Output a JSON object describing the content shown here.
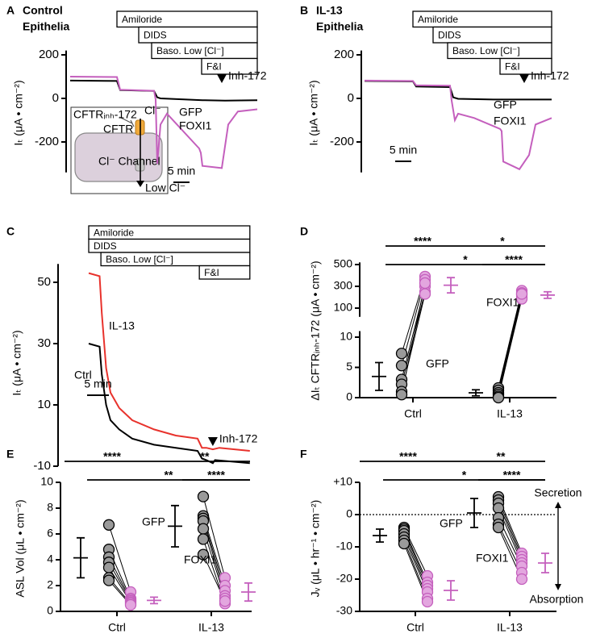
{
  "chart_data": [
    {
      "type": "line",
      "panel": "A",
      "title": [
        "Control",
        "Epithelia"
      ],
      "title_color": "#000000",
      "ylabel": "Iₜ (μA • cm⁻²)",
      "ylim": [
        -340,
        220
      ],
      "yticks": [
        200,
        0,
        -200
      ],
      "xlim": [
        0,
        58
      ],
      "treatments": [
        {
          "label": "Amiloride",
          "start": 14.5
        },
        {
          "label": "DIDS",
          "start": 21.25
        },
        {
          "label": "Baso. Low [Cl⁻]",
          "start": 25.25
        },
        {
          "label": "F&I",
          "start": 40.75
        }
      ],
      "series": [
        {
          "name": "GFP",
          "color": "#000000",
          "x": [
            0,
            14.5,
            15.5,
            26,
            27,
            28,
            36,
            41,
            48,
            58
          ],
          "values": [
            82,
            80,
            38,
            34,
            5,
            0,
            -5,
            -8,
            -10,
            -8
          ]
        },
        {
          "name": "FOXI1",
          "color": "#c45fbd",
          "x": [
            0,
            14.5,
            15.5,
            26,
            26.5,
            27,
            28,
            30,
            40,
            40.5,
            41,
            47,
            49,
            52,
            58
          ],
          "values": [
            100,
            98,
            40,
            35,
            -5,
            -300,
            -120,
            -70,
            -230,
            -250,
            -310,
            -320,
            -120,
            -60,
            -50
          ]
        }
      ],
      "marker": {
        "label": "Inh-172",
        "x": 47
      },
      "scalebar": {
        "label": "5 min",
        "value": 5
      },
      "inset": {
        "inhibitor": "CFTRᵢₙₕ-172",
        "ion": "Cl⁻",
        "channel": "CFTR",
        "other": "Cl⁻ Channel",
        "low": "Low Cl⁻"
      }
    },
    {
      "type": "line",
      "panel": "B",
      "title": [
        "IL-13",
        "Epithelia"
      ],
      "title_color": "#e8322c",
      "ylabel": "Iₜ (μA • cm⁻²)",
      "ylim": [
        -340,
        220
      ],
      "yticks": [
        200,
        0,
        -200
      ],
      "xlim": [
        0,
        58
      ],
      "treatments": [
        {
          "label": "Amiloride",
          "start": 15
        },
        {
          "label": "DIDS",
          "start": 21.25
        },
        {
          "label": "Baso. Low [Cl⁻]",
          "start": 25.75
        },
        {
          "label": "F&I",
          "start": 42
        }
      ],
      "series": [
        {
          "name": "GFP",
          "color": "#000000",
          "x": [
            0,
            15,
            16,
            26.5,
            27.5,
            29,
            40,
            58
          ],
          "values": [
            80,
            78,
            55,
            52,
            5,
            -2,
            -5,
            -5
          ]
        },
        {
          "name": "FOXI1",
          "color": "#c45fbd",
          "x": [
            0,
            15,
            16,
            26.5,
            27,
            28,
            29,
            34,
            42,
            42.5,
            43,
            48,
            51,
            53,
            58
          ],
          "values": [
            82,
            80,
            60,
            58,
            -10,
            -100,
            -70,
            -90,
            -140,
            -150,
            -290,
            -325,
            -260,
            -120,
            -90
          ]
        }
      ],
      "marker": {
        "label": "Inh-172",
        "x": 49.5
      },
      "scalebar": {
        "label": "5 min",
        "value": 5
      }
    },
    {
      "type": "line",
      "panel": "C",
      "title": [],
      "title_color": "#000000",
      "ylabel": "Iₜ (μA • cm⁻²)",
      "ylim": [
        -10,
        56
      ],
      "yticks": [
        50,
        30,
        10,
        -10
      ],
      "xlim": [
        0,
        37
      ],
      "treatments": [
        {
          "label": "Amiloride",
          "start": 0
        },
        {
          "label": "DIDS",
          "start": 0
        },
        {
          "label": "Baso. Low [Cl⁻]",
          "start": 2.8
        },
        {
          "label": "F&I",
          "start": 25.4
        }
      ],
      "series": [
        {
          "name": "Ctrl",
          "color": "#000000",
          "x": [
            0,
            2.5,
            3,
            4,
            5,
            7,
            10,
            15,
            20,
            25,
            26,
            27,
            28.5,
            29,
            37
          ],
          "values": [
            30,
            29,
            20,
            10,
            5,
            2,
            -1,
            -3,
            -4,
            -5,
            -7.5,
            -8,
            -9,
            -8,
            -9
          ]
        },
        {
          "name": "IL-13",
          "color": "#e8322c",
          "x": [
            0,
            2.5,
            3,
            4,
            5,
            7,
            10,
            15,
            20,
            25,
            26,
            27,
            28.5,
            30,
            37
          ],
          "values": [
            53,
            52,
            40,
            22,
            14,
            9,
            5,
            2,
            0,
            -1,
            -4,
            -4,
            -4.5,
            -4,
            -5
          ]
        }
      ],
      "marker": {
        "label": "Inh-172",
        "x": 28.5
      },
      "scalebar": {
        "label": "5 min",
        "value": 5
      }
    },
    {
      "type": "strip",
      "panel": "D",
      "ylabel": "ΔIₜ CFTRᵢₙₕ-172 (μA • cm⁻²)",
      "categories": [
        "Ctrl",
        "IL-13"
      ],
      "category_colors": [
        "#000000",
        "#e8322c"
      ],
      "ylim": [
        0,
        11
      ],
      "yticks": [
        0,
        5,
        10
      ],
      "ylim_break": [
        20,
        520
      ],
      "yticks_break": [
        100,
        300,
        500
      ],
      "series": [
        {
          "name": "GFP",
          "color": "#9a9a9a",
          "edge_color": "#000000",
          "values": [
            [
              7.3,
              5.3,
              3,
              2.2,
              1,
              0.5
            ],
            [
              1.6,
              1.2,
              0.8,
              0.5,
              0.2,
              0
            ]
          ],
          "mean": [
            3.5,
            0.8
          ],
          "sd": [
            2.3,
            0.5
          ]
        },
        {
          "name": "FOXI1",
          "color": "#e3a6df",
          "edge_color": "#c45fbd",
          "values": [
            [
              390,
              360,
              300,
              250,
              230,
              330
            ],
            [
              260,
              240,
              220,
              200,
              185,
              230
            ]
          ],
          "mean": [
            310,
            220
          ],
          "sd": [
            70,
            30
          ]
        }
      ],
      "significance": [
        "****",
        "*",
        "*",
        "****"
      ]
    },
    {
      "type": "strip",
      "panel": "E",
      "ylabel": "ASL Vol (μL • cm⁻²)",
      "categories": [
        "Ctrl",
        "IL-13"
      ],
      "category_colors": [
        "#000000",
        "#e8322c"
      ],
      "ylim": [
        0,
        10
      ],
      "yticks": [
        0,
        2,
        4,
        6,
        8,
        10
      ],
      "series": [
        {
          "name": "GFP",
          "color": "#9a9a9a",
          "edge_color": "#000000",
          "values": [
            [
              6.7,
              4.8,
              4.2,
              3.8,
              3.4,
              2.6,
              2.4
            ],
            [
              8.9,
              7.4,
              7.2,
              7.0,
              6.4,
              5.6,
              4.4
            ]
          ],
          "mean": [
            4.15,
            6.6
          ],
          "sd": [
            1.55,
            1.6
          ]
        },
        {
          "name": "FOXI1",
          "color": "#e3a6df",
          "edge_color": "#c45fbd",
          "values": [
            [
              1.5,
              1.0,
              0.9,
              0.8,
              0.7,
              0.6,
              0.5
            ],
            [
              2.6,
              2.0,
              1.6,
              1.2,
              1.0,
              0.6,
              0.8
            ]
          ],
          "mean": [
            0.85,
            1.5
          ],
          "sd": [
            0.25,
            0.7
          ]
        }
      ],
      "significance": [
        "****",
        "**",
        "**",
        "****"
      ]
    },
    {
      "type": "strip",
      "panel": "F",
      "ylabel": "Jᵥ (μL • hr⁻¹ • cm⁻²)",
      "categories": [
        "Ctrl",
        "IL-13"
      ],
      "category_colors": [
        "#000000",
        "#e8322c"
      ],
      "ylim": [
        -30,
        10
      ],
      "yticks": [
        {
          "value": 10,
          "label": "+10"
        },
        0,
        -10,
        -20,
        -30
      ],
      "zero_line": true,
      "series": [
        {
          "name": "GFP",
          "color": "#9a9a9a",
          "edge_color": "#000000",
          "values": [
            [
              -4,
              -4.5,
              -5,
              -6,
              -7,
              -8,
              -9
            ],
            [
              5.5,
              4.5,
              3.5,
              2,
              -1,
              -3,
              -4
            ]
          ],
          "mean": [
            -6.5,
            0.5
          ],
          "sd": [
            2,
            4.5
          ]
        },
        {
          "name": "FOXI1",
          "color": "#e3a6df",
          "edge_color": "#c45fbd",
          "values": [
            [
              -19,
              -21,
              -22,
              -23,
              -24,
              -26,
              -27
            ],
            [
              -12,
              -13,
              -14,
              -15,
              -16,
              -18,
              -20
            ]
          ],
          "mean": [
            -23.5,
            -15
          ],
          "sd": [
            3,
            3
          ]
        }
      ],
      "significance": [
        "****",
        "**",
        "*",
        "****"
      ],
      "direction_labels": [
        "Secretion",
        "Absorption"
      ]
    }
  ]
}
